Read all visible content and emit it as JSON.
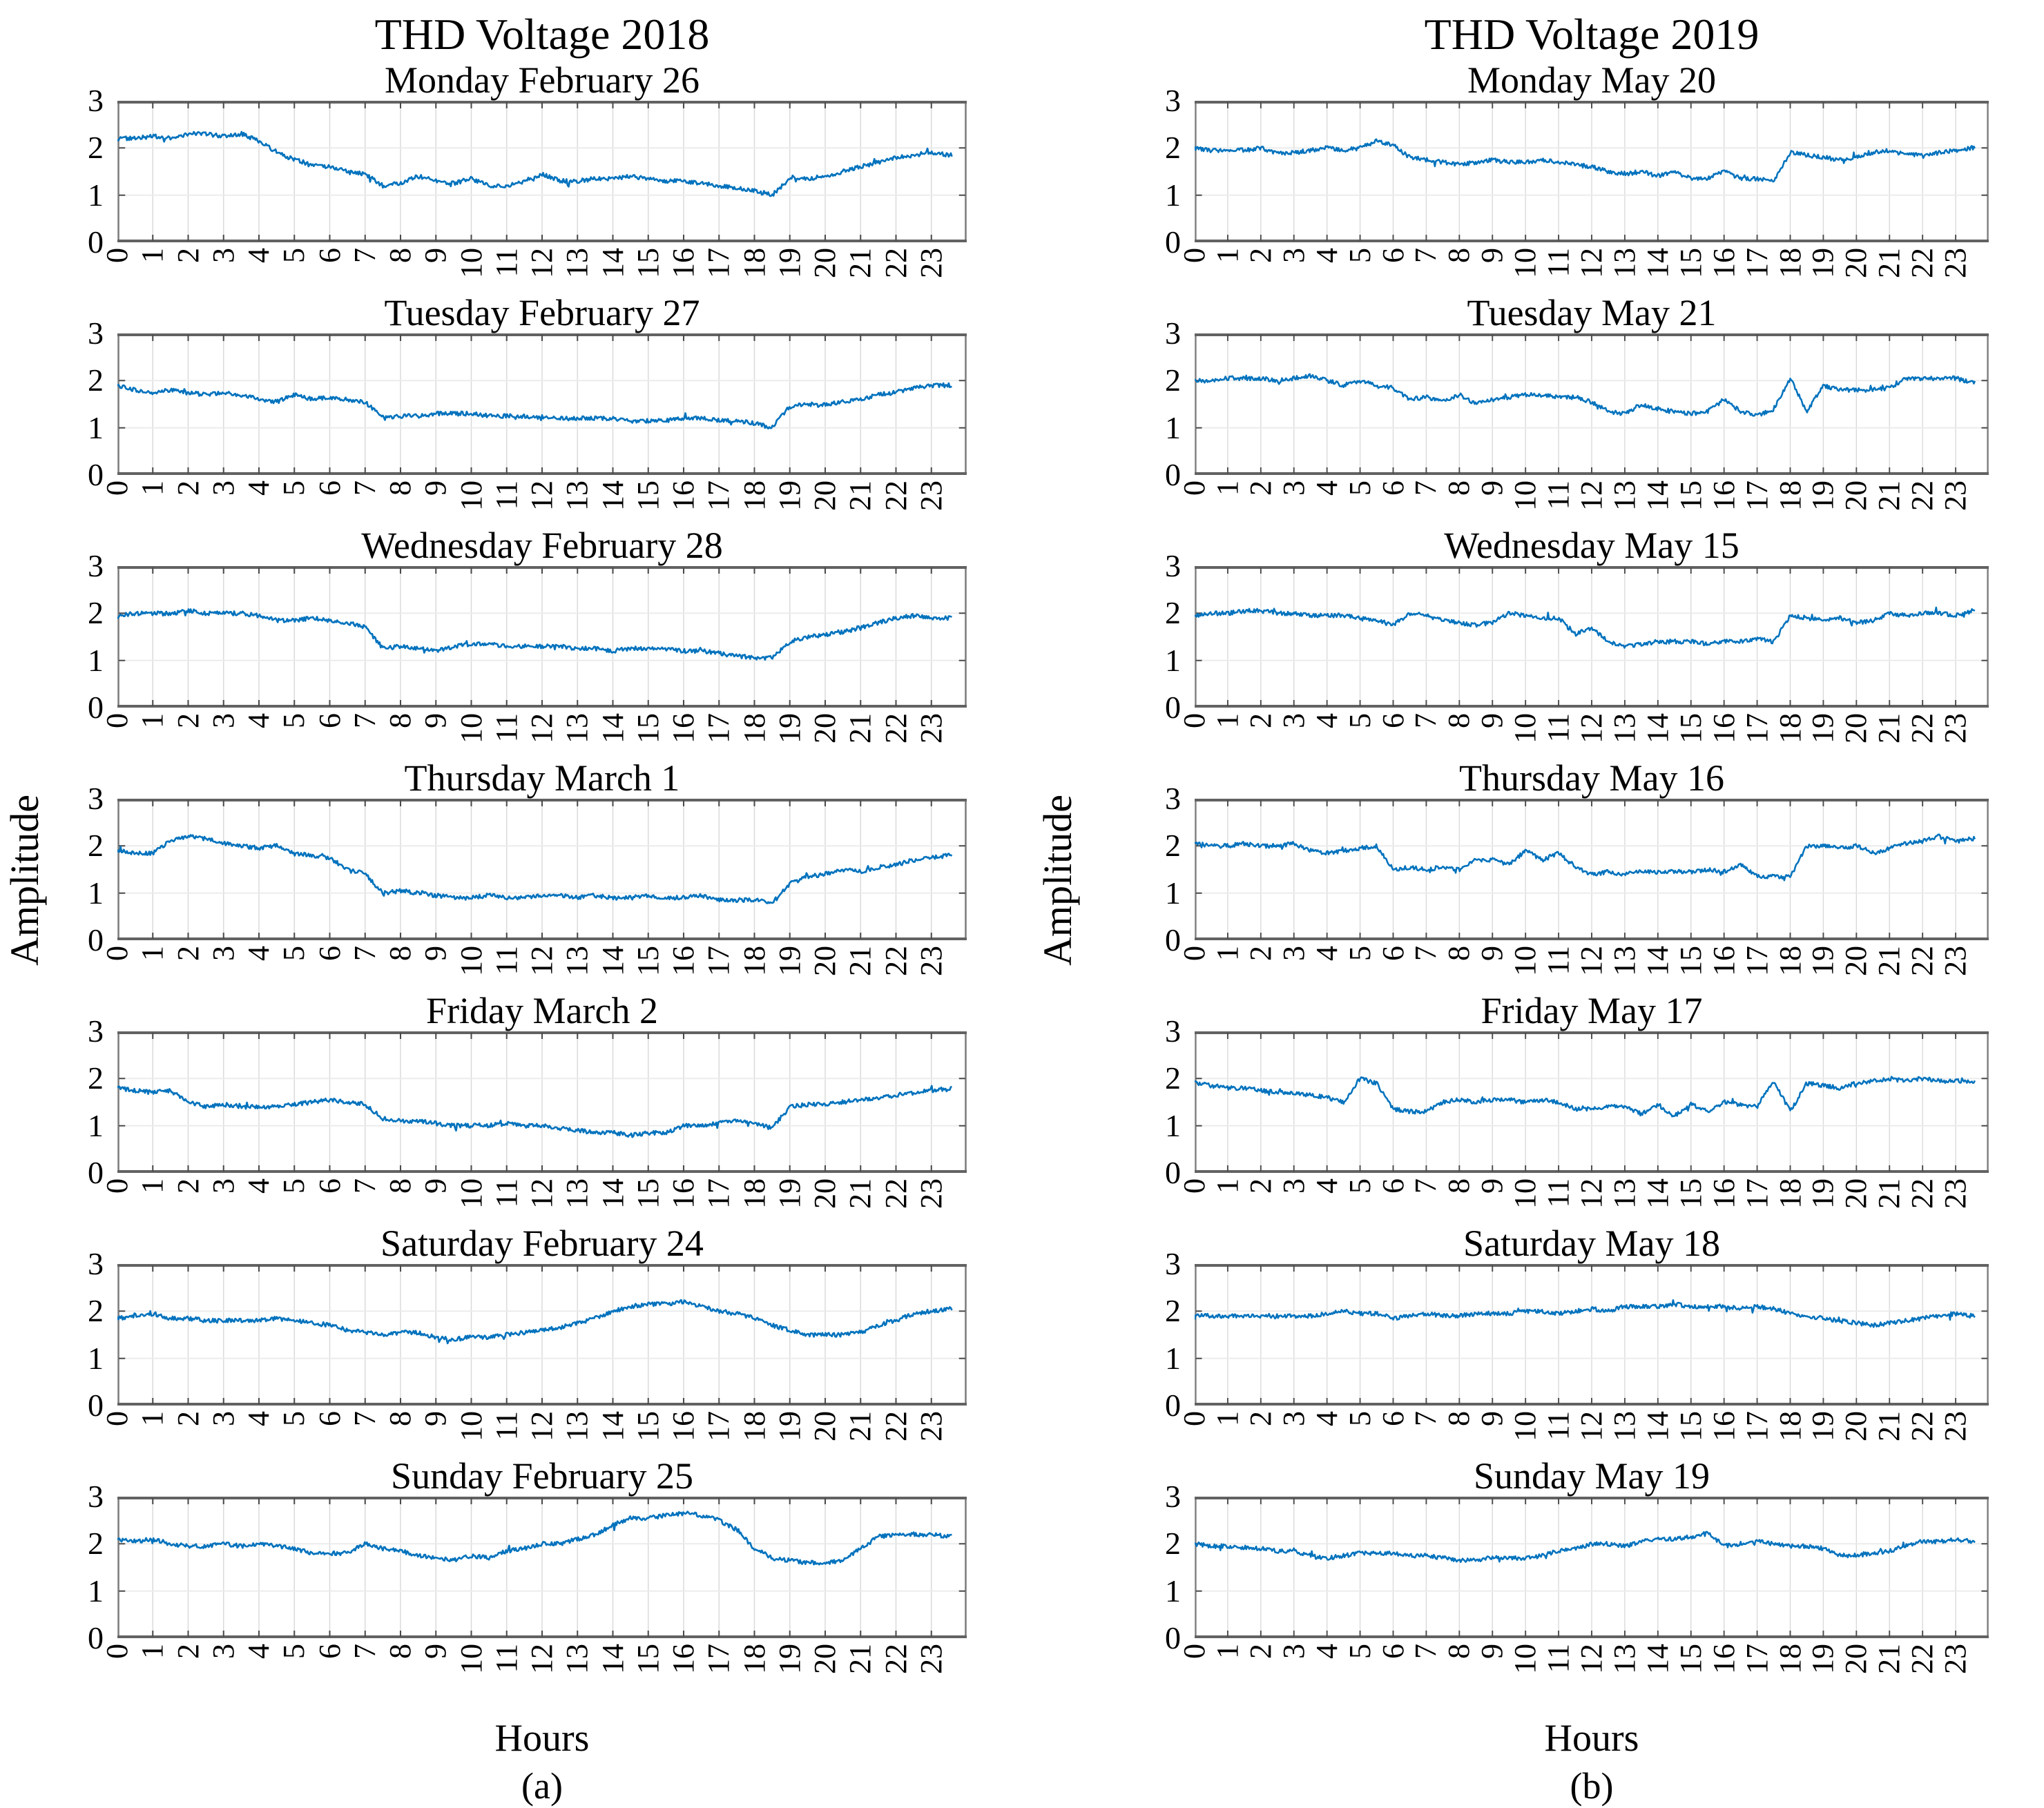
{
  "chart_data": {
    "type": "line",
    "x_label": "Hours",
    "y_label": "Amplitude",
    "xlim": [
      0,
      24
    ],
    "ylim": [
      0,
      3
    ],
    "xticks": [
      0,
      1,
      2,
      3,
      4,
      5,
      6,
      7,
      8,
      9,
      10,
      11,
      12,
      13,
      14,
      15,
      16,
      17,
      18,
      19,
      20,
      21,
      22,
      23
    ],
    "yticks": [
      0,
      1,
      2,
      3
    ],
    "grid": true,
    "legend": "none",
    "line_color": "#0072BD",
    "x_hours": [
      0,
      0.5,
      1,
      1.5,
      2,
      2.5,
      3,
      3.5,
      4,
      4.5,
      5,
      5.5,
      6,
      6.5,
      7,
      7.5,
      8,
      8.5,
      9,
      9.5,
      10,
      10.5,
      11,
      11.5,
      12,
      12.5,
      13,
      13.5,
      14,
      14.5,
      15,
      15.5,
      16,
      16.5,
      17,
      17.5,
      18,
      18.5,
      19,
      19.5,
      20,
      20.5,
      21,
      21.5,
      22,
      22.5,
      23,
      23.5
    ],
    "groups": [
      {
        "id": "a",
        "title": "THD Voltage 2018",
        "caption": "(a)",
        "days": [
          {
            "title": "Monday February 26",
            "y": [
              2.2,
              2.2,
              2.25,
              2.2,
              2.3,
              2.3,
              2.25,
              2.3,
              2.15,
              1.9,
              1.75,
              1.65,
              1.6,
              1.5,
              1.45,
              1.2,
              1.25,
              1.4,
              1.3,
              1.25,
              1.35,
              1.2,
              1.2,
              1.3,
              1.45,
              1.3,
              1.3,
              1.35,
              1.35,
              1.4,
              1.35,
              1.3,
              1.3,
              1.25,
              1.2,
              1.15,
              1.1,
              1.0,
              1.35,
              1.35,
              1.4,
              1.5,
              1.6,
              1.7,
              1.8,
              1.85,
              1.9,
              1.85
            ]
          },
          {
            "title": "Tuesday February 27",
            "y": [
              1.9,
              1.8,
              1.75,
              1.8,
              1.75,
              1.7,
              1.75,
              1.7,
              1.6,
              1.55,
              1.7,
              1.6,
              1.65,
              1.6,
              1.55,
              1.2,
              1.25,
              1.25,
              1.3,
              1.3,
              1.3,
              1.25,
              1.25,
              1.25,
              1.2,
              1.2,
              1.2,
              1.2,
              1.2,
              1.15,
              1.15,
              1.15,
              1.2,
              1.2,
              1.15,
              1.15,
              1.1,
              1.0,
              1.45,
              1.5,
              1.5,
              1.55,
              1.6,
              1.7,
              1.75,
              1.85,
              1.9,
              1.9
            ]
          },
          {
            "title": "Wednesday February 28",
            "y": [
              1.95,
              2.0,
              2.0,
              2.0,
              2.05,
              2.0,
              2.0,
              2.0,
              1.95,
              1.85,
              1.85,
              1.9,
              1.85,
              1.8,
              1.7,
              1.25,
              1.3,
              1.25,
              1.2,
              1.3,
              1.35,
              1.35,
              1.3,
              1.3,
              1.3,
              1.3,
              1.25,
              1.25,
              1.2,
              1.25,
              1.25,
              1.25,
              1.2,
              1.2,
              1.15,
              1.1,
              1.05,
              1.05,
              1.4,
              1.5,
              1.55,
              1.6,
              1.7,
              1.8,
              1.9,
              1.95,
              1.9,
              1.9
            ]
          },
          {
            "title": "Thursday March 1",
            "y": [
              1.9,
              1.85,
              1.85,
              2.1,
              2.2,
              2.15,
              2.05,
              2.0,
              1.95,
              2.0,
              1.85,
              1.8,
              1.75,
              1.5,
              1.4,
              1.0,
              1.05,
              1.0,
              0.95,
              0.9,
              0.9,
              0.95,
              0.9,
              0.9,
              0.95,
              0.95,
              0.9,
              0.95,
              0.9,
              0.9,
              0.95,
              0.9,
              0.9,
              0.95,
              0.85,
              0.85,
              0.85,
              0.8,
              1.2,
              1.35,
              1.4,
              1.5,
              1.45,
              1.55,
              1.6,
              1.7,
              1.75,
              1.8
            ]
          },
          {
            "title": "Friday March 2",
            "y": [
              1.8,
              1.75,
              1.7,
              1.75,
              1.5,
              1.4,
              1.45,
              1.4,
              1.4,
              1.4,
              1.45,
              1.5,
              1.55,
              1.5,
              1.45,
              1.15,
              1.1,
              1.1,
              1.05,
              1.0,
              1.0,
              1.0,
              1.05,
              1.0,
              1.0,
              0.95,
              0.9,
              0.85,
              0.85,
              0.8,
              0.85,
              0.85,
              1.0,
              1.0,
              1.05,
              1.1,
              1.05,
              0.95,
              1.4,
              1.45,
              1.45,
              1.5,
              1.55,
              1.6,
              1.65,
              1.7,
              1.75,
              1.8
            ]
          },
          {
            "title": "Saturday February 24",
            "y": [
              1.85,
              1.9,
              1.95,
              1.85,
              1.85,
              1.8,
              1.8,
              1.8,
              1.8,
              1.85,
              1.8,
              1.75,
              1.7,
              1.6,
              1.55,
              1.5,
              1.55,
              1.55,
              1.45,
              1.4,
              1.45,
              1.45,
              1.5,
              1.55,
              1.6,
              1.65,
              1.75,
              1.85,
              2.0,
              2.1,
              2.15,
              2.15,
              2.2,
              2.1,
              2.0,
              1.95,
              1.85,
              1.7,
              1.6,
              1.5,
              1.5,
              1.5,
              1.55,
              1.7,
              1.8,
              1.95,
              2.0,
              2.05
            ]
          },
          {
            "title": "Sunday February 25",
            "y": [
              2.1,
              2.05,
              2.1,
              2.0,
              1.95,
              1.95,
              2.0,
              1.95,
              2.0,
              1.95,
              1.9,
              1.8,
              1.8,
              1.8,
              2.0,
              1.9,
              1.85,
              1.75,
              1.7,
              1.65,
              1.75,
              1.7,
              1.85,
              1.9,
              2.0,
              2.0,
              2.1,
              2.2,
              2.4,
              2.55,
              2.55,
              2.6,
              2.65,
              2.6,
              2.5,
              2.3,
              1.9,
              1.7,
              1.65,
              1.6,
              1.6,
              1.65,
              1.9,
              2.15,
              2.2,
              2.2,
              2.2,
              2.15
            ]
          }
        ]
      },
      {
        "id": "b",
        "title": "THD Voltage 2019",
        "caption": "(b)",
        "days": [
          {
            "title": "Monday May 20",
            "y": [
              2.0,
              1.95,
              1.95,
              1.95,
              2.0,
              1.9,
              1.9,
              1.95,
              2.0,
              1.95,
              2.0,
              2.15,
              2.05,
              1.8,
              1.75,
              1.7,
              1.65,
              1.7,
              1.75,
              1.7,
              1.7,
              1.75,
              1.7,
              1.65,
              1.6,
              1.5,
              1.45,
              1.5,
              1.4,
              1.5,
              1.35,
              1.35,
              1.5,
              1.35,
              1.35,
              1.3,
              1.9,
              1.85,
              1.8,
              1.75,
              1.8,
              1.9,
              1.95,
              1.85,
              1.85,
              1.9,
              1.95,
              2.0
            ]
          },
          {
            "title": "Tuesday May 21",
            "y": [
              2.0,
              2.0,
              2.05,
              2.05,
              2.05,
              2.0,
              2.05,
              2.1,
              2.0,
              1.9,
              2.0,
              1.9,
              1.85,
              1.6,
              1.65,
              1.55,
              1.7,
              1.5,
              1.6,
              1.65,
              1.7,
              1.7,
              1.65,
              1.65,
              1.55,
              1.35,
              1.3,
              1.5,
              1.4,
              1.35,
              1.3,
              1.35,
              1.6,
              1.35,
              1.25,
              1.4,
              2.05,
              1.35,
              1.9,
              1.8,
              1.8,
              1.8,
              1.85,
              2.05,
              2.05,
              2.05,
              2.05,
              1.95
            ]
          },
          {
            "title": "Wednesday May 15",
            "y": [
              1.95,
              2.0,
              2.0,
              2.05,
              2.05,
              2.0,
              2.0,
              1.95,
              1.95,
              1.95,
              1.9,
              1.85,
              1.75,
              2.0,
              1.95,
              1.85,
              1.8,
              1.75,
              1.8,
              2.0,
              1.95,
              1.9,
              1.9,
              1.55,
              1.7,
              1.4,
              1.3,
              1.35,
              1.4,
              1.4,
              1.4,
              1.35,
              1.4,
              1.4,
              1.45,
              1.4,
              1.95,
              1.9,
              1.85,
              1.9,
              1.8,
              1.85,
              2.0,
              1.95,
              2.0,
              2.0,
              1.95,
              2.05
            ]
          },
          {
            "title": "Thursday May 16",
            "y": [
              2.05,
              2.0,
              2.0,
              2.05,
              2.0,
              2.0,
              2.05,
              1.9,
              1.85,
              1.9,
              1.95,
              2.0,
              1.5,
              1.55,
              1.5,
              1.55,
              1.5,
              1.7,
              1.7,
              1.6,
              1.9,
              1.7,
              1.85,
              1.55,
              1.4,
              1.45,
              1.4,
              1.45,
              1.45,
              1.45,
              1.45,
              1.5,
              1.45,
              1.6,
              1.35,
              1.35,
              1.35,
              2.0,
              2.0,
              1.95,
              2.0,
              1.85,
              1.95,
              2.05,
              2.1,
              2.2,
              2.1,
              2.15
            ]
          },
          {
            "title": "Friday May 17",
            "y": [
              1.9,
              1.85,
              1.8,
              1.8,
              1.75,
              1.7,
              1.7,
              1.65,
              1.6,
              1.5,
              2.0,
              1.9,
              1.35,
              1.3,
              1.3,
              1.5,
              1.55,
              1.5,
              1.55,
              1.55,
              1.5,
              1.55,
              1.5,
              1.35,
              1.35,
              1.4,
              1.4,
              1.25,
              1.45,
              1.2,
              1.45,
              1.3,
              1.5,
              1.45,
              1.4,
              1.95,
              1.3,
              1.9,
              1.85,
              1.8,
              1.9,
              1.95,
              2.0,
              1.95,
              2.0,
              1.95,
              1.95,
              1.95
            ]
          },
          {
            "title": "Saturday May 18",
            "y": [
              1.9,
              1.9,
              1.9,
              1.9,
              1.9,
              1.9,
              1.9,
              1.9,
              1.95,
              2.0,
              1.95,
              1.95,
              1.85,
              1.9,
              1.95,
              1.9,
              1.9,
              1.95,
              1.95,
              1.95,
              2.0,
              2.0,
              1.95,
              2.0,
              2.05,
              2.0,
              2.1,
              2.1,
              2.1,
              2.15,
              2.1,
              2.1,
              2.1,
              2.05,
              2.1,
              2.05,
              1.95,
              1.9,
              1.85,
              1.8,
              1.75,
              1.7,
              1.75,
              1.8,
              1.85,
              1.9,
              1.95,
              1.9
            ]
          },
          {
            "title": "Sunday May 19",
            "y": [
              2.0,
              1.95,
              1.95,
              1.9,
              1.9,
              1.85,
              1.85,
              1.75,
              1.7,
              1.75,
              1.8,
              1.8,
              1.8,
              1.75,
              1.75,
              1.7,
              1.65,
              1.65,
              1.7,
              1.7,
              1.7,
              1.75,
              1.85,
              1.9,
              2.0,
              2.0,
              1.95,
              2.05,
              2.1,
              2.1,
              2.15,
              2.25,
              1.95,
              2.0,
              2.05,
              2.0,
              1.95,
              1.95,
              1.9,
              1.75,
              1.75,
              1.8,
              1.85,
              1.95,
              2.05,
              2.05,
              2.1,
              2.05
            ]
          }
        ]
      }
    ]
  }
}
